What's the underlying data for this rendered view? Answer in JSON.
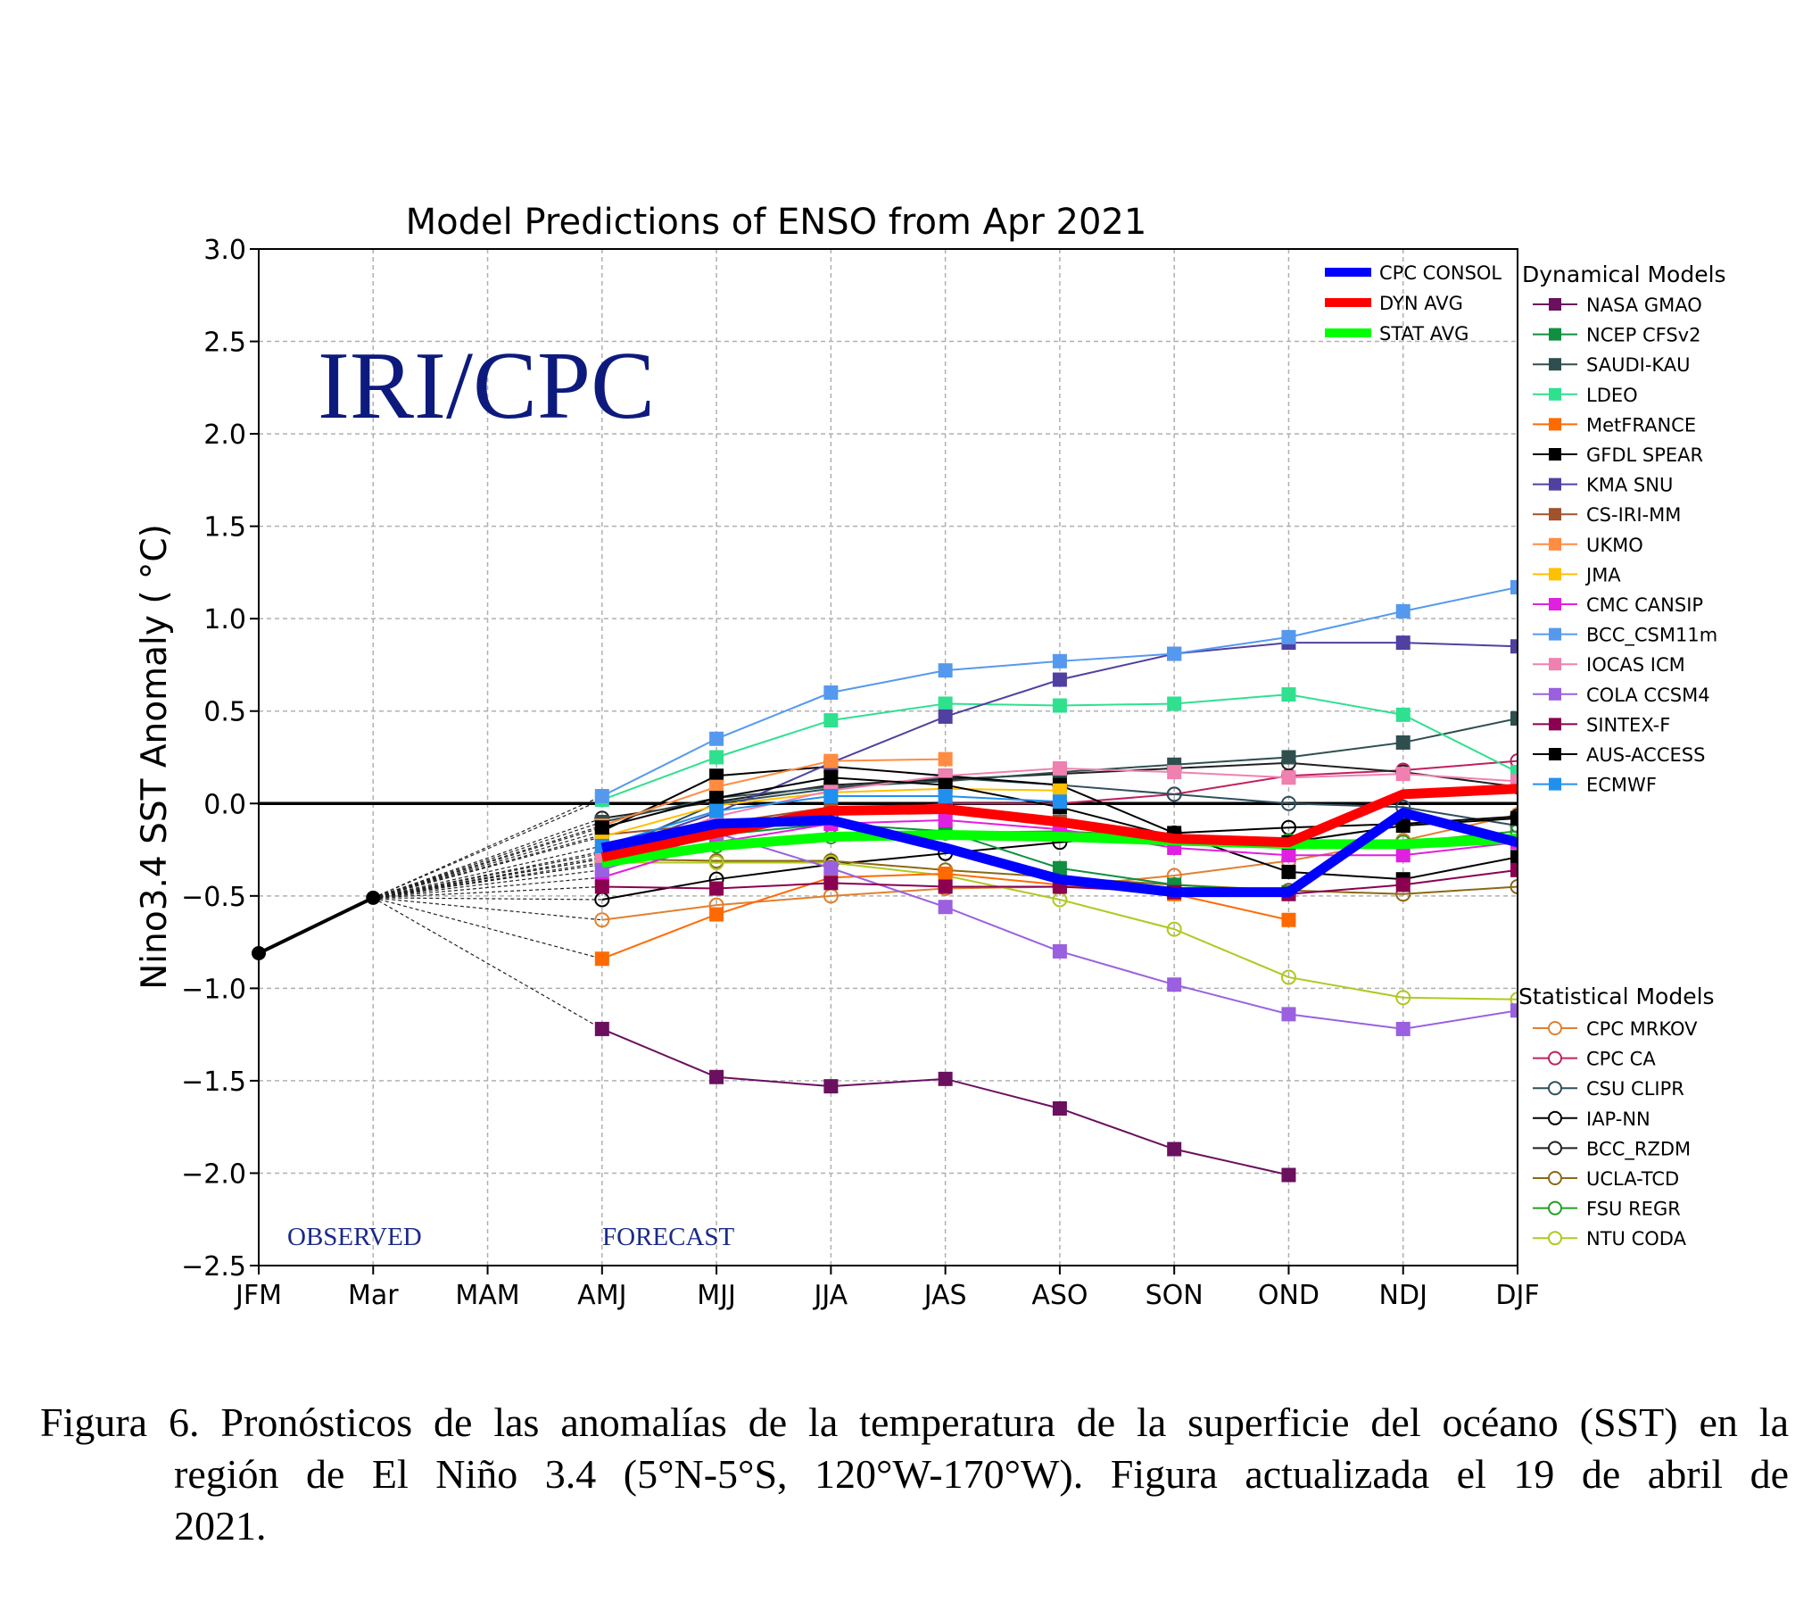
{
  "chart_data": {
    "type": "line",
    "title": "Model Predictions of ENSO from Apr 2021",
    "ylabel": "Nino3.4 SST Anomaly ( °C)",
    "xlabel": "",
    "categories": [
      "JFM",
      "Mar",
      "MAM",
      "AMJ",
      "MJJ",
      "JJA",
      "JAS",
      "ASO",
      "SON",
      "OND",
      "NDJ",
      "DJF"
    ],
    "ylim": [
      -2.5,
      3.0
    ],
    "yticks": [
      3.0,
      2.5,
      2.0,
      1.5,
      1.0,
      0.5,
      0.0,
      -0.5,
      -1.0,
      -1.5,
      -2.0,
      -2.5
    ],
    "ytick_labels": [
      "3.0",
      "2.5",
      "2.0",
      "1.5",
      "1.0",
      "0.5",
      "0.0",
      "−0.5",
      "−1.0",
      "−1.5",
      "−2.0",
      "−2.5"
    ],
    "grid": true,
    "watermark": "IRI/CPC",
    "annotations": {
      "observed": "OBSERVED",
      "forecast": "FORECAST"
    },
    "observed": [
      -0.81,
      -0.51
    ],
    "averages": [
      {
        "name": "CPC CONSOL",
        "color": "#0000ff",
        "values": [
          -0.24,
          -0.11,
          -0.09,
          -0.24,
          -0.41,
          -0.48,
          -0.48,
          -0.05,
          -0.21
        ]
      },
      {
        "name": "DYN AVG",
        "color": "#ff0000",
        "values": [
          -0.29,
          -0.16,
          -0.04,
          -0.03,
          -0.1,
          -0.19,
          -0.21,
          0.05,
          0.08
        ]
      },
      {
        "name": "STAT AVG",
        "color": "#00ff00",
        "values": [
          -0.32,
          -0.23,
          -0.18,
          -0.17,
          -0.18,
          -0.2,
          -0.22,
          -0.22,
          -0.19
        ]
      }
    ],
    "legend_dynamical_title": "Dynamical Models",
    "legend_statistical_title": "Statistical Models",
    "dynamical_models": [
      {
        "name": "NASA GMAO",
        "color": "#6b0f5f",
        "values": [
          -1.22,
          -1.48,
          -1.53,
          -1.49,
          -1.65,
          -1.87,
          -2.01,
          null,
          null
        ]
      },
      {
        "name": "NCEP CFSv2",
        "color": "#0f8f3f",
        "values": [
          -0.29,
          -0.17,
          -0.11,
          -0.15,
          -0.35,
          -0.44,
          -0.48,
          null,
          null
        ]
      },
      {
        "name": "SAUDI-KAU",
        "color": "#2f4f4f",
        "values": [
          -0.1,
          0.03,
          0.09,
          0.12,
          0.17,
          0.21,
          0.25,
          0.33,
          0.46
        ]
      },
      {
        "name": "LDEO",
        "color": "#2fe08f",
        "values": [
          0.02,
          0.25,
          0.45,
          0.54,
          0.53,
          0.54,
          0.59,
          0.48,
          0.17
        ]
      },
      {
        "name": "MetFRANCE",
        "color": "#ff6a00",
        "values": [
          -0.84,
          -0.6,
          -0.4,
          -0.38,
          -0.44,
          -0.49,
          -0.63,
          null,
          null
        ]
      },
      {
        "name": "GFDL SPEAR",
        "color": "#000000",
        "values": [
          -0.15,
          0.15,
          0.2,
          0.15,
          0.1,
          -0.16,
          -0.37,
          -0.41,
          -0.29
        ]
      },
      {
        "name": "KMA SNU",
        "color": "#5040a0",
        "values": [
          -0.26,
          -0.05,
          0.22,
          0.47,
          0.67,
          0.81,
          0.87,
          0.87,
          0.85
        ]
      },
      {
        "name": "CS-IRI-MM",
        "color": "#a0522d",
        "values": [
          -0.17,
          -0.11,
          -0.02,
          -0.05,
          -0.1,
          -0.18,
          null,
          null,
          null
        ]
      },
      {
        "name": "UKMO",
        "color": "#ff8c40",
        "values": [
          -0.12,
          0.09,
          0.23,
          0.24,
          null,
          null,
          null,
          null,
          null
        ]
      },
      {
        "name": "JMA",
        "color": "#ffc000",
        "values": [
          -0.18,
          -0.01,
          0.06,
          0.08,
          0.07,
          null,
          null,
          null,
          null
        ]
      },
      {
        "name": "CMC CANSIP",
        "color": "#e020e0",
        "values": [
          -0.4,
          -0.21,
          -0.11,
          -0.09,
          -0.14,
          -0.24,
          -0.28,
          -0.28,
          -0.21
        ]
      },
      {
        "name": "BCC_CSM11m",
        "color": "#5599ee",
        "values": [
          0.04,
          0.35,
          0.6,
          0.72,
          0.77,
          0.81,
          0.9,
          1.04,
          1.17
        ]
      },
      {
        "name": "IOCAS ICM",
        "color": "#f080b0",
        "values": [
          -0.3,
          -0.07,
          0.07,
          0.15,
          0.19,
          0.17,
          0.14,
          0.16,
          0.12
        ]
      },
      {
        "name": "COLA CCSM4",
        "color": "#9a60e0",
        "values": [
          -0.36,
          -0.16,
          -0.35,
          -0.56,
          -0.8,
          -0.98,
          -1.14,
          -1.22,
          -1.12
        ]
      },
      {
        "name": "SINTEX-F",
        "color": "#8b0050",
        "values": [
          -0.45,
          -0.46,
          -0.43,
          -0.45,
          -0.45,
          -0.48,
          -0.49,
          -0.44,
          -0.36
        ]
      },
      {
        "name": "AUS-ACCESS",
        "color": "#000000",
        "values": [
          -0.13,
          0.03,
          0.14,
          0.1,
          -0.02,
          -0.18,
          -0.21,
          -0.12,
          -0.08
        ]
      },
      {
        "name": "ECMWF",
        "color": "#2090f0",
        "values": [
          -0.23,
          -0.04,
          0.04,
          0.04,
          0.01,
          null,
          null,
          null,
          null
        ]
      }
    ],
    "statistical_models": [
      {
        "name": "CPC MRKOV",
        "color": "#e08030",
        "values": [
          -0.63,
          -0.55,
          -0.5,
          -0.46,
          -0.45,
          -0.39,
          -0.31,
          -0.2,
          -0.06
        ]
      },
      {
        "name": "CPC CA",
        "color": "#c02060",
        "values": [
          -0.3,
          -0.17,
          -0.06,
          0.0,
          0.0,
          0.05,
          0.15,
          0.18,
          0.23
        ]
      },
      {
        "name": "CSU CLIPR",
        "color": "#2f4f5f",
        "values": [
          -0.27,
          0.0,
          0.08,
          0.14,
          0.1,
          0.05,
          0.0,
          -0.02,
          -0.12
        ]
      },
      {
        "name": "IAP-NN",
        "color": "#000000",
        "values": [
          -0.52,
          -0.41,
          -0.33,
          -0.27,
          -0.21,
          -0.16,
          -0.13,
          -0.11,
          -0.07
        ]
      },
      {
        "name": "BCC_RZDM",
        "color": "#202020",
        "values": [
          -0.08,
          0.01,
          0.1,
          0.13,
          0.16,
          0.19,
          0.22,
          0.17,
          0.09
        ]
      },
      {
        "name": "UCLA-TCD",
        "color": "#8b6914",
        "values": [
          -0.3,
          -0.31,
          -0.31,
          -0.36,
          -0.4,
          -0.44,
          -0.47,
          -0.49,
          -0.45
        ]
      },
      {
        "name": "FSU REGR",
        "color": "#20a020",
        "values": [
          -0.33,
          -0.23,
          -0.18,
          -0.16,
          -0.15,
          -0.18,
          -0.2,
          -0.21,
          -0.15
        ]
      },
      {
        "name": "NTU CODA",
        "color": "#b0c820",
        "values": [
          -0.32,
          -0.32,
          -0.32,
          -0.39,
          -0.52,
          -0.68,
          -0.94,
          -1.05,
          -1.06
        ]
      }
    ]
  },
  "caption": {
    "line1": "Figura 6. Pronósticos de las anomalías de la temperatura de la superficie del océano (SST) en la",
    "line2": "región de El Niño 3.4 (5°N-5°S, 120°W-170°W). Figura actualizada el 19 de abril de",
    "line3": "2021."
  }
}
